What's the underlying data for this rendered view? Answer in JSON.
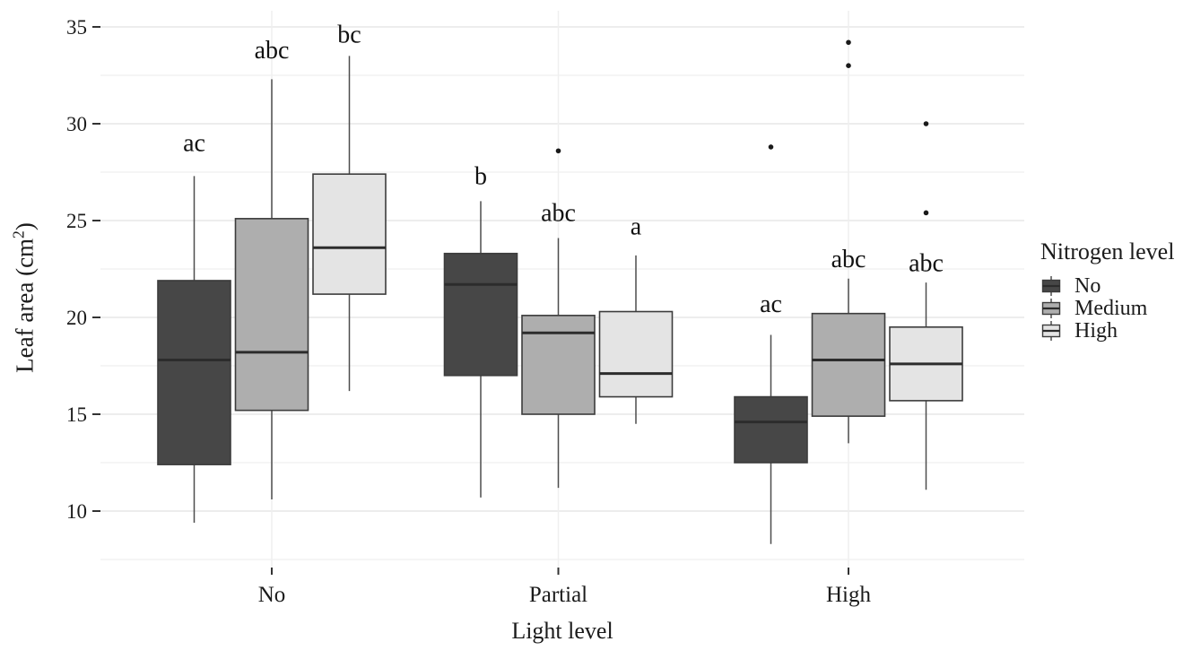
{
  "figure": {
    "y_axis_title": {
      "pre": "Leaf area (cm",
      "sup": "2",
      "post": ")"
    },
    "x_axis_title": "Light level",
    "legend": {
      "title": "Nitrogen level",
      "items": [
        {
          "label": "No",
          "color": "#474747"
        },
        {
          "label": "Medium",
          "color": "#aeaeae"
        },
        {
          "label": "High",
          "color": "#e4e4e4"
        }
      ]
    }
  },
  "chart_data": {
    "type": "boxplot",
    "title": "",
    "xlabel": "Light level",
    "ylabel": "Leaf area (cm2)",
    "ylim": [
      7,
      36
    ],
    "yticks_major": [
      10,
      15,
      20,
      25,
      30,
      35
    ],
    "yticks_minor": [
      7.5,
      12.5,
      17.5,
      22.5,
      27.5,
      32.5
    ],
    "grid": "horizontal major+minor; vertical line at each category",
    "legend_position": "right",
    "categories": [
      "No",
      "Partial",
      "High"
    ],
    "series": [
      "No",
      "Medium",
      "High"
    ],
    "series_colors": [
      "#474747",
      "#aeaeae",
      "#e4e4e4"
    ],
    "boxes": [
      {
        "category": "No",
        "series": "No",
        "whisker_low": 9.4,
        "q1": 12.4,
        "median": 17.8,
        "q3": 21.9,
        "whisker_high": 27.3,
        "outliers": [],
        "sig_label": "ac",
        "sig_label_y": 29.0
      },
      {
        "category": "No",
        "series": "Medium",
        "whisker_low": 10.6,
        "q1": 15.2,
        "median": 18.2,
        "q3": 25.1,
        "whisker_high": 32.3,
        "outliers": [],
        "sig_label": "abc",
        "sig_label_y": 33.8
      },
      {
        "category": "No",
        "series": "High",
        "whisker_low": 16.2,
        "q1": 21.2,
        "median": 23.6,
        "q3": 27.4,
        "whisker_high": 33.5,
        "outliers": [],
        "sig_label": "bc",
        "sig_label_y": 34.6
      },
      {
        "category": "Partial",
        "series": "No",
        "whisker_low": 10.7,
        "q1": 17.0,
        "median": 21.7,
        "q3": 23.3,
        "whisker_high": 26.0,
        "outliers": [],
        "sig_label": "b",
        "sig_label_y": 27.3
      },
      {
        "category": "Partial",
        "series": "Medium",
        "whisker_low": 11.2,
        "q1": 15.0,
        "median": 19.2,
        "q3": 20.1,
        "whisker_high": 24.1,
        "outliers": [
          28.6
        ],
        "sig_label": "abc",
        "sig_label_y": 25.4
      },
      {
        "category": "Partial",
        "series": "High",
        "whisker_low": 14.5,
        "q1": 15.9,
        "median": 17.1,
        "q3": 20.3,
        "whisker_high": 23.2,
        "outliers": [],
        "sig_label": "a",
        "sig_label_y": 24.7
      },
      {
        "category": "High",
        "series": "No",
        "whisker_low": 8.3,
        "q1": 12.5,
        "median": 14.6,
        "q3": 15.9,
        "whisker_high": 19.1,
        "outliers": [
          28.8
        ],
        "sig_label": "ac",
        "sig_label_y": 20.7
      },
      {
        "category": "High",
        "series": "Medium",
        "whisker_low": 13.5,
        "q1": 14.9,
        "median": 17.8,
        "q3": 20.2,
        "whisker_high": 22.0,
        "outliers": [
          34.2,
          33.0
        ],
        "sig_label": "abc",
        "sig_label_y": 23.0
      },
      {
        "category": "High",
        "series": "High",
        "whisker_low": 11.1,
        "q1": 15.7,
        "median": 17.6,
        "q3": 19.5,
        "whisker_high": 21.8,
        "outliers": [
          30.0,
          25.4
        ],
        "sig_label": "abc",
        "sig_label_y": 22.8
      }
    ],
    "style": {
      "text_color": "#1b1b1b",
      "grid_major_color": "#e7e7e7",
      "grid_minor_color": "#f2f2f2",
      "grid_vertical_color": "#efefef",
      "tick_color": "#333333",
      "box_border_color": "#3c3c3c",
      "whisker_color": "#4d4d4d",
      "median_color": "#2c2c2c",
      "outlier_color": "#1a1a1a"
    }
  }
}
